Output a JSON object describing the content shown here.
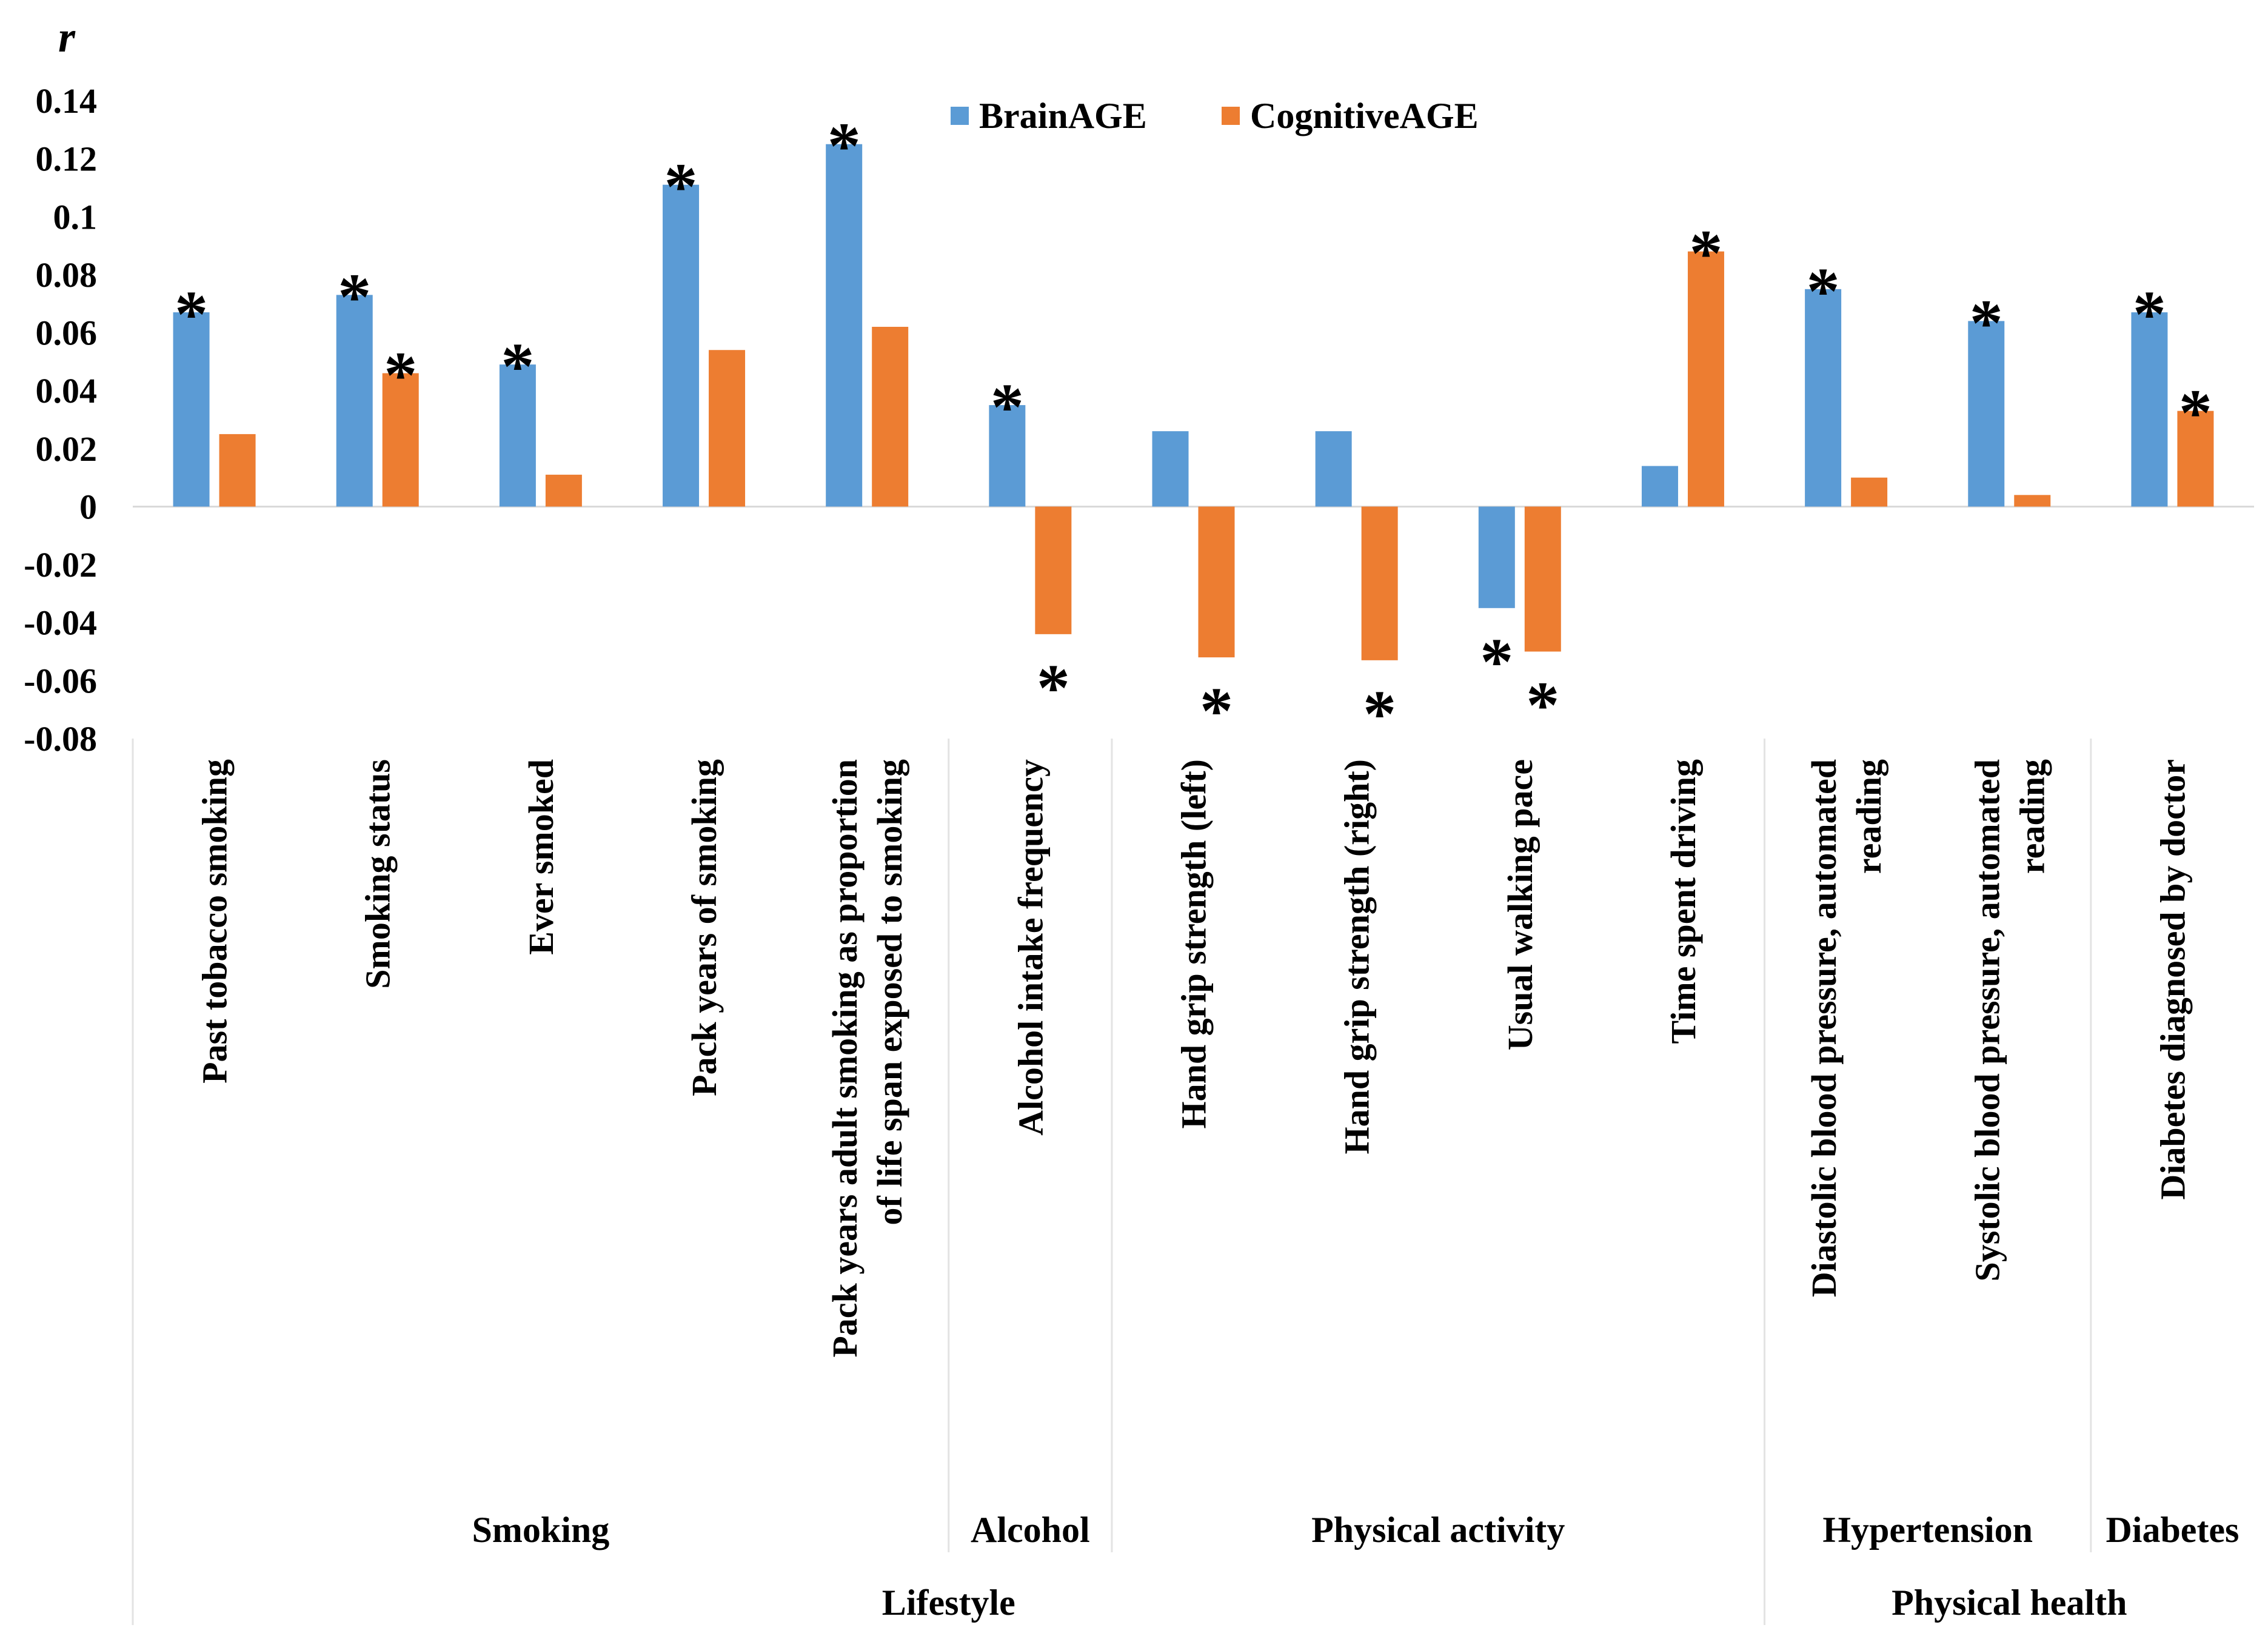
{
  "chart_data": {
    "type": "bar",
    "ylabel": "r",
    "ylim": [
      -0.08,
      0.14
    ],
    "yticks": [
      0.14,
      0.12,
      0.1,
      0.08,
      0.06,
      0.04,
      0.02,
      0,
      -0.02,
      -0.04,
      -0.06,
      -0.08
    ],
    "ytick_labels": [
      "0.14",
      "0.12",
      "0.1",
      "0.08",
      "0.06",
      "0.04",
      "0.02",
      "0",
      "-0.02",
      "-0.04",
      "-0.06",
      "-0.08"
    ],
    "legend_position": "top",
    "categories": [
      {
        "lines": [
          "Past tobacco smoking"
        ]
      },
      {
        "lines": [
          "Smoking status"
        ]
      },
      {
        "lines": [
          "Ever smoked"
        ]
      },
      {
        "lines": [
          "Pack years of smoking"
        ]
      },
      {
        "lines": [
          "Pack years adult smoking as proportion",
          "of life span exposed to smoking"
        ]
      },
      {
        "lines": [
          "Alcohol intake frequency"
        ]
      },
      {
        "lines": [
          "Hand grip strength (left)"
        ]
      },
      {
        "lines": [
          "Hand grip strength (right)"
        ]
      },
      {
        "lines": [
          "Usual walking pace"
        ]
      },
      {
        "lines": [
          "Time spent driving"
        ]
      },
      {
        "lines": [
          "Diastolic blood pressure, automated",
          "reading"
        ]
      },
      {
        "lines": [
          "Systolic blood pressure, automated",
          "reading"
        ]
      },
      {
        "lines": [
          "Diabetes diagnosed by doctor"
        ]
      }
    ],
    "series": [
      {
        "name": "BrainAGE",
        "color": "#5B9BD5",
        "values": [
          0.067,
          0.073,
          0.049,
          0.111,
          0.125,
          0.035,
          0.026,
          0.026,
          -0.035,
          0.014,
          0.075,
          0.064,
          0.067
        ],
        "significant": [
          true,
          true,
          true,
          true,
          true,
          true,
          false,
          false,
          true,
          false,
          true,
          true,
          true
        ]
      },
      {
        "name": "CognitiveAGE",
        "color": "#ED7D31",
        "values": [
          0.025,
          0.046,
          0.011,
          0.054,
          0.062,
          -0.044,
          -0.052,
          -0.053,
          -0.05,
          0.088,
          0.01,
          0.004,
          0.033
        ],
        "significant": [
          false,
          true,
          false,
          false,
          false,
          true,
          true,
          true,
          true,
          true,
          false,
          false,
          true
        ]
      }
    ],
    "significance_marker": "*",
    "groups": [
      {
        "label": "Smoking",
        "start": 0,
        "end": 4
      },
      {
        "label": "Alcohol",
        "start": 5,
        "end": 5
      },
      {
        "label": "Physical activity",
        "start": 6,
        "end": 9
      },
      {
        "label": "Hypertension",
        "start": 10,
        "end": 11
      },
      {
        "label": "Diabetes",
        "start": 12,
        "end": 12
      }
    ],
    "supergroups": [
      {
        "label": "Lifestyle",
        "start": 0,
        "end": 9
      },
      {
        "label": "Physical health",
        "start": 10,
        "end": 12
      }
    ]
  }
}
